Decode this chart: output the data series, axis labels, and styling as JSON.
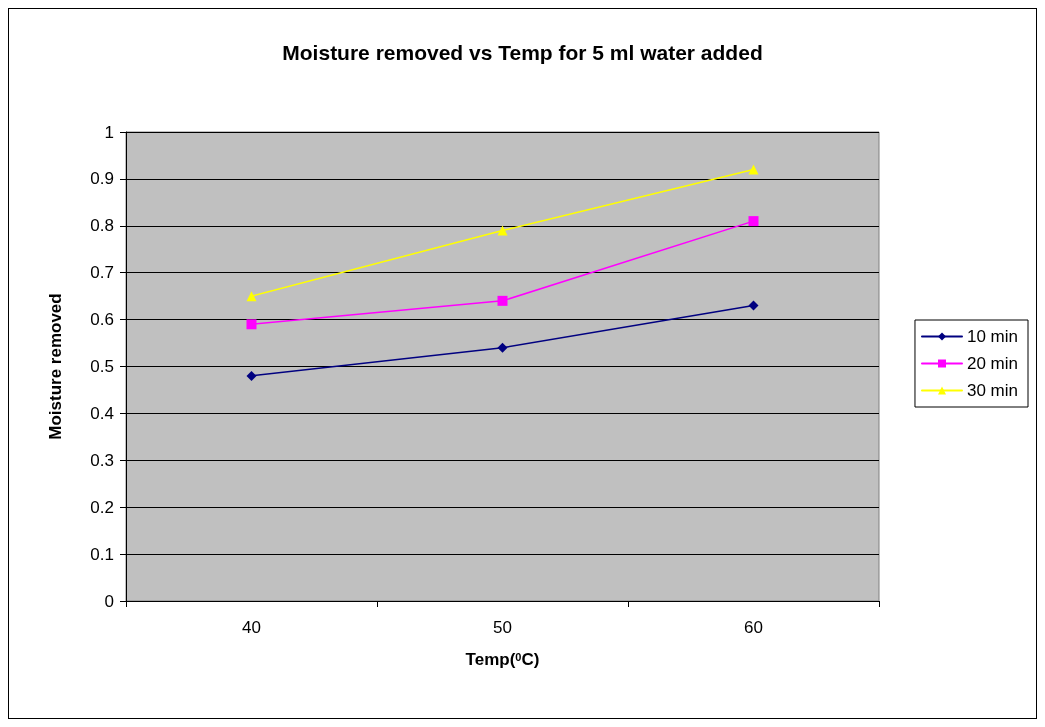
{
  "chart_data": {
    "type": "line",
    "title": "Moisture removed vs Temp for 5 ml water added",
    "xlabel": "Temp($^{0}$C)",
    "ylabel": "Moisture removed",
    "categories": [
      "40",
      "50",
      "60"
    ],
    "series": [
      {
        "name": "10 min",
        "color": "#000080",
        "marker": "diamond",
        "values": [
          0.48,
          0.54,
          0.63
        ]
      },
      {
        "name": "20 min",
        "color": "#ff00ff",
        "marker": "square",
        "values": [
          0.59,
          0.64,
          0.81
        ]
      },
      {
        "name": "30 min",
        "color": "#ffff00",
        "marker": "triangle",
        "values": [
          0.65,
          0.79,
          0.92
        ]
      }
    ],
    "ylim": [
      0,
      1
    ],
    "yticks": [
      0,
      0.1,
      0.2,
      0.3,
      0.4,
      0.5,
      0.6,
      0.7,
      0.8,
      0.9,
      1
    ],
    "grid": "y",
    "legend": "right"
  }
}
